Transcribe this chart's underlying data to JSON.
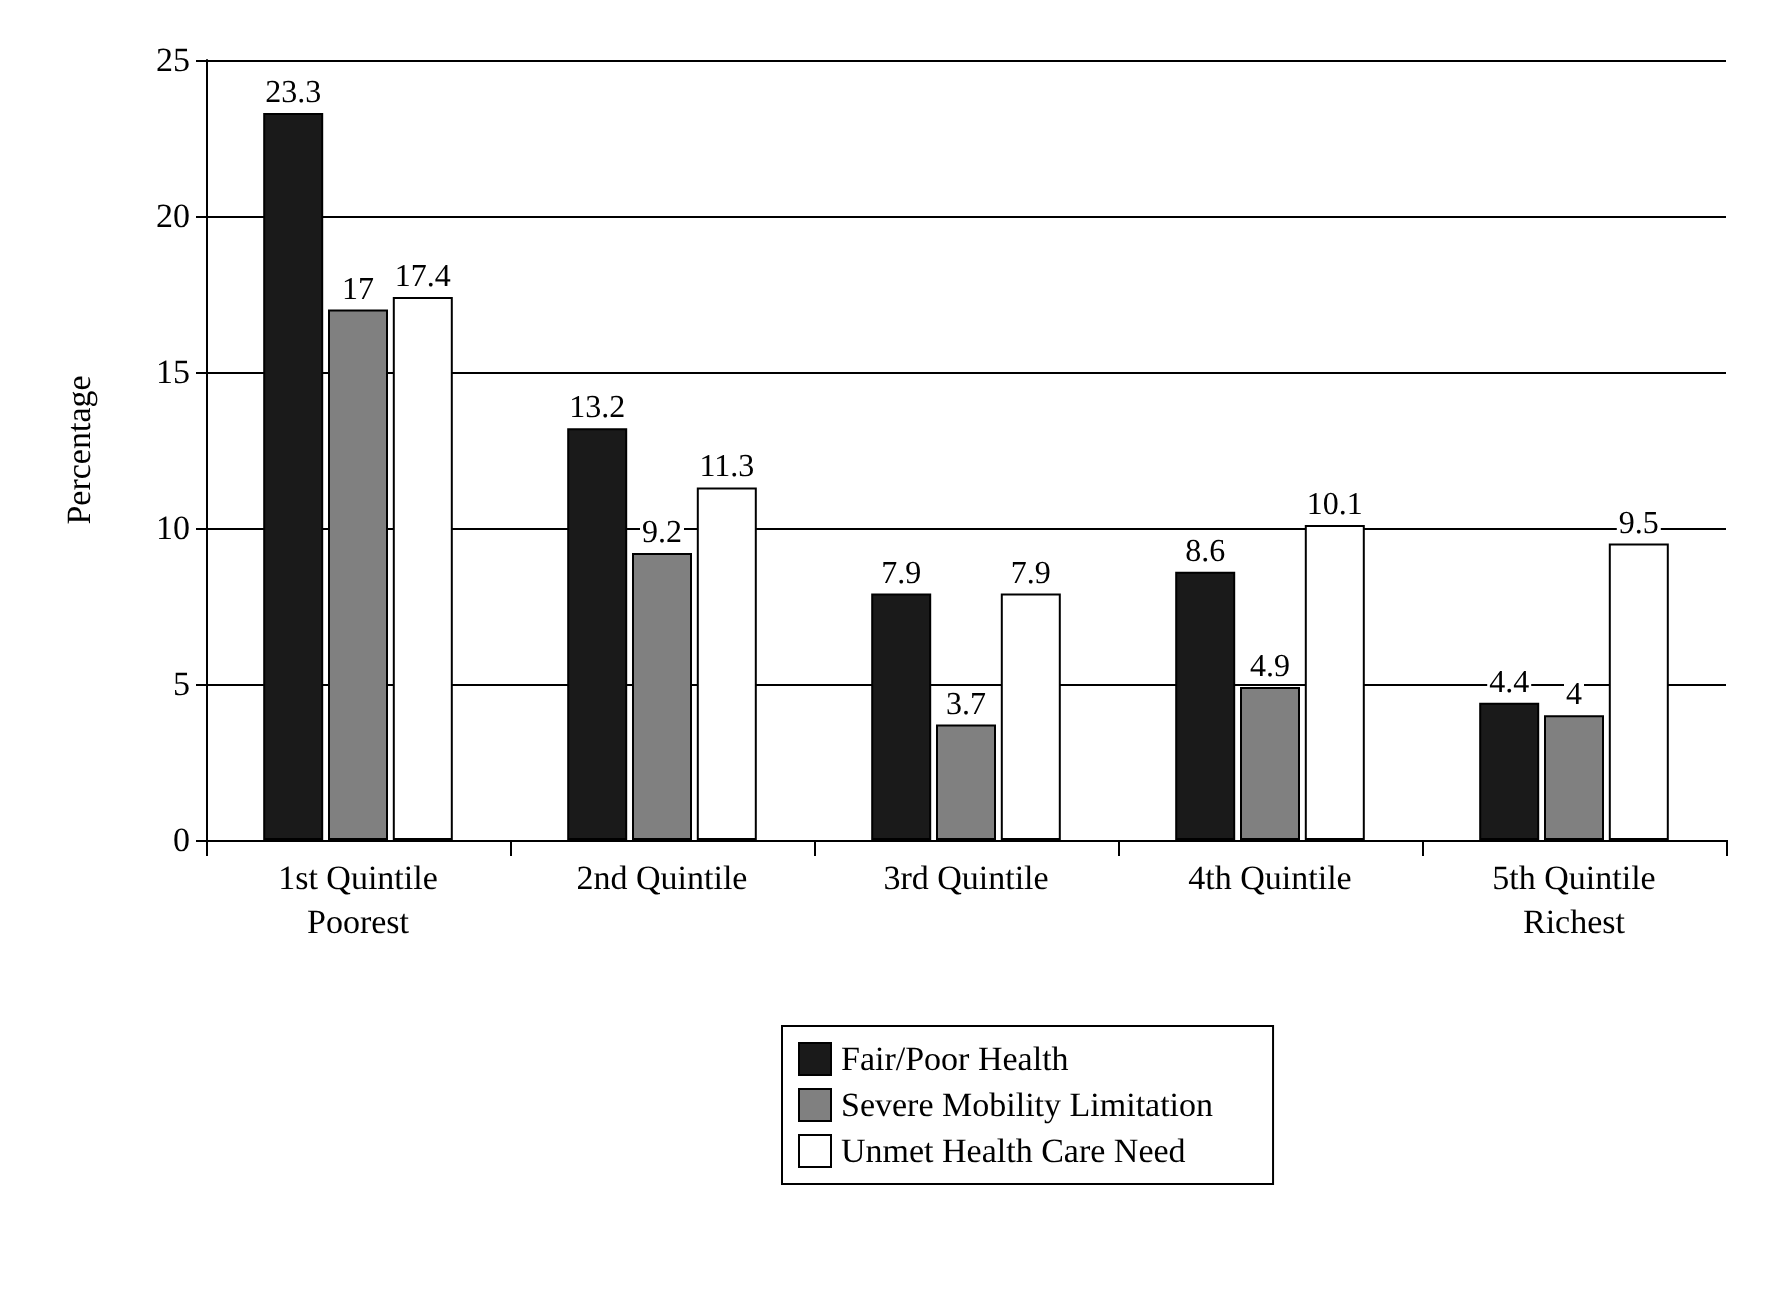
{
  "chart_data": {
    "type": "bar",
    "ylabel": "Percentage",
    "categories": [
      "1st Quintile\nPoorest",
      "2nd Quintile",
      "3rd Quintile",
      "4th Quintile",
      "5th Quintile\nRichest"
    ],
    "series": [
      {
        "name": "Fair/Poor Health",
        "color": "#1a1a1a",
        "values": [
          23.3,
          13.2,
          7.9,
          8.6,
          4.4
        ]
      },
      {
        "name": "Severe Mobility Limitation",
        "color": "#808080",
        "values": [
          17,
          9.2,
          3.7,
          4.9,
          4
        ]
      },
      {
        "name": "Unmet Health Care Need",
        "color": "#ffffff",
        "values": [
          17.4,
          11.3,
          7.9,
          10.1,
          9.5
        ]
      }
    ],
    "ylim": [
      0,
      25
    ],
    "yticks": [
      0,
      5,
      10,
      15,
      20,
      25
    ],
    "grid": "y",
    "legend": "bottom",
    "data_labels": true
  }
}
